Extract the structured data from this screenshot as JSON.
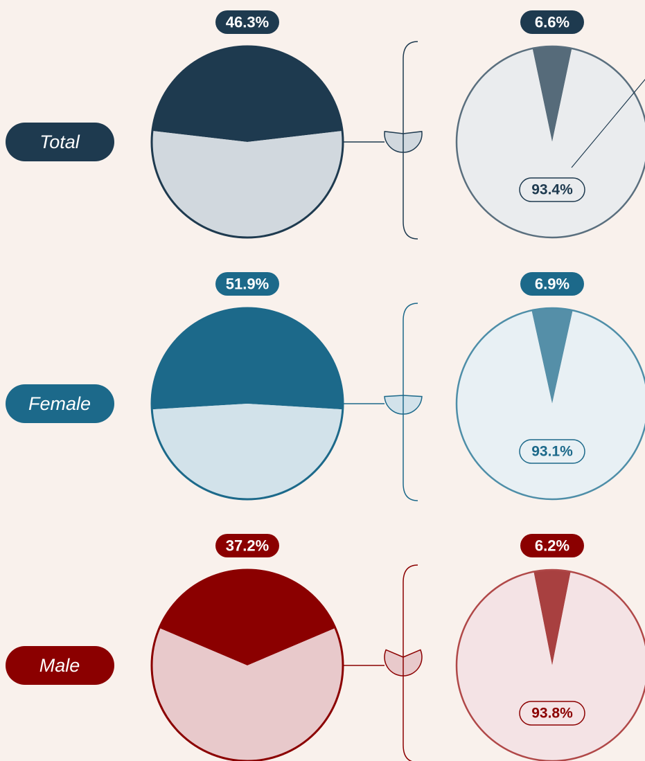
{
  "chart_data": [
    {
      "type": "pie",
      "title": "Total",
      "values": [
        46.3,
        53.7
      ],
      "value_labels": [
        "46.3%",
        null
      ],
      "colors": [
        "#1e3a4f",
        "#d1d8de"
      ],
      "outline": "#1e3a4f",
      "detail": {
        "values": [
          6.6,
          93.4
        ],
        "value_labels": [
          "6.6%",
          "93.4%"
        ],
        "colors": [
          "#566b7a",
          "#eaecee"
        ],
        "outline": "#5a6f7e"
      }
    },
    {
      "type": "pie",
      "title": "Female",
      "values": [
        51.9,
        48.1
      ],
      "value_labels": [
        "51.9%",
        null
      ],
      "colors": [
        "#1c698a",
        "#d2e2ea"
      ],
      "outline": "#1c698a",
      "detail": {
        "values": [
          6.9,
          93.1
        ],
        "value_labels": [
          "6.9%",
          "93.1%"
        ],
        "colors": [
          "#558fa8",
          "#e8f0f4"
        ],
        "outline": "#4e8ea8"
      }
    },
    {
      "type": "pie",
      "title": "Male",
      "values": [
        37.2,
        62.8
      ],
      "value_labels": [
        "37.2%",
        null
      ],
      "colors": [
        "#8b0000",
        "#e8c9cb"
      ],
      "outline": "#8b0000",
      "detail": {
        "values": [
          6.2,
          93.8
        ],
        "value_labels": [
          "6.2%",
          "93.8%"
        ],
        "colors": [
          "#a84040",
          "#f4e3e5"
        ],
        "outline": "#b04848"
      }
    }
  ]
}
